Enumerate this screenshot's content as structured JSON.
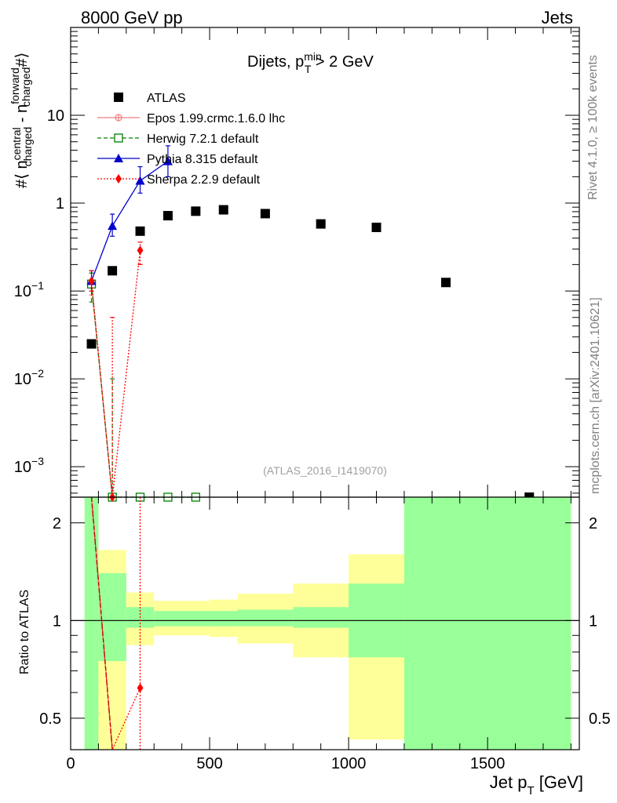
{
  "header": {
    "left": "8000 GeV pp",
    "right": "Jets",
    "side_top": "Rivet 4.1.0, ≥ 100k events",
    "side_bottom": "mcplots.cern.ch [arXiv:2401.10621]"
  },
  "chart_data": [
    {
      "type": "scatter",
      "panel": "main",
      "title": {
        "main": "Dijets, p",
        "sub": "T",
        "sup": "min",
        "rest": " > 2 GeV"
      },
      "ylabel": {
        "prefix": "#⟨ n",
        "sup1": "central",
        "sub1": "charged",
        "mid": " - n",
        "sup2": "forward",
        "sub2": "charged",
        "suffix": "#⟩"
      },
      "watermark": "(ATLAS_2016_I1419070)",
      "yscale": "log",
      "ylim": [
        0.00045,
        100
      ],
      "xlim": [
        0,
        1830
      ],
      "yticks": [
        {
          "v": 0.001,
          "m": "10",
          "e": "−3"
        },
        {
          "v": 0.01,
          "m": "10",
          "e": "−2"
        },
        {
          "v": 0.1,
          "m": "10",
          "e": "−1"
        },
        {
          "v": 1,
          "m": "1",
          "e": ""
        },
        {
          "v": 10,
          "m": "10",
          "e": ""
        }
      ],
      "series": [
        {
          "name": "ATLAS",
          "color": "#000000",
          "marker": "square",
          "points": [
            {
              "x": 75,
              "y": 0.025
            },
            {
              "x": 150,
              "y": 0.17
            },
            {
              "x": 250,
              "y": 0.48
            },
            {
              "x": 350,
              "y": 0.72
            },
            {
              "x": 450,
              "y": 0.81
            },
            {
              "x": 550,
              "y": 0.84
            },
            {
              "x": 700,
              "y": 0.76
            },
            {
              "x": 900,
              "y": 0.58
            },
            {
              "x": 1100,
              "y": 0.53
            },
            {
              "x": 1350,
              "y": 0.125
            },
            {
              "x": 1650,
              "y": 0.00045
            }
          ]
        },
        {
          "name": "Epos 1.99.crmc.1.6.0 lhc",
          "color": "#f08080",
          "marker": "open-cross",
          "dash": "",
          "points": [
            {
              "x": 75,
              "y": 0.12,
              "elo": 0.09,
              "ehi": 0.16
            },
            {
              "x": 150,
              "y": 0.00045
            }
          ]
        },
        {
          "name": "Herwig 7.2.1 default",
          "color": "#008000",
          "marker": "open-square",
          "dash": "5,3",
          "points": [
            {
              "x": 75,
              "y": 0.12,
              "elo": 0.075,
              "ehi": 0.16
            },
            {
              "x": 150,
              "y": 0.00045,
              "ehi": 0.01
            },
            {
              "x": 250,
              "y": 0.00045
            },
            {
              "x": 350,
              "y": 0.00045
            },
            {
              "x": 450,
              "y": 0.00045
            }
          ]
        },
        {
          "name": "Pythia 8.315 default",
          "color": "#0000cc",
          "marker": "triangle",
          "dash": "",
          "points": [
            {
              "x": 75,
              "y": 0.13,
              "elo": 0.1,
              "ehi": 0.17
            },
            {
              "x": 150,
              "y": 0.55,
              "elo": 0.42,
              "ehi": 0.75
            },
            {
              "x": 250,
              "y": 1.8,
              "elo": 1.3,
              "ehi": 2.6
            },
            {
              "x": 350,
              "y": 3.0,
              "elo": 2.0,
              "ehi": 4.5
            }
          ]
        },
        {
          "name": "Sherpa 2.2.9 default",
          "color": "#ff0000",
          "marker": "diamond",
          "dash": "2,2",
          "points": [
            {
              "x": 75,
              "y": 0.13,
              "elo": 0.1,
              "ehi": 0.17
            },
            {
              "x": 150,
              "y": 0.00045,
              "ehi": 0.05
            },
            {
              "x": 250,
              "y": 0.29,
              "elo": 0.2,
              "ehi": 0.36
            }
          ]
        }
      ]
    },
    {
      "type": "area",
      "panel": "ratio",
      "ylabel": "Ratio to ATLAS",
      "xlabel": {
        "main": "Jet p",
        "sub": "T",
        "rest": " [GeV]"
      },
      "yscale": "log",
      "ylim": [
        0.4,
        2.4
      ],
      "xlim": [
        0,
        1830
      ],
      "xticks": [
        0,
        500,
        1000,
        1500
      ],
      "yticks": [
        0.5,
        1,
        2
      ],
      "bands": [
        {
          "x0": 50,
          "x1": 100,
          "g": [
            0.05,
            50
          ],
          "y": [
            0.05,
            50
          ]
        },
        {
          "x0": 100,
          "x1": 200,
          "g": [
            0.75,
            1.4
          ],
          "y": [
            0.3,
            1.65
          ]
        },
        {
          "x0": 200,
          "x1": 300,
          "g": [
            0.95,
            1.1
          ],
          "y": [
            0.84,
            1.22
          ]
        },
        {
          "x0": 300,
          "x1": 500,
          "g": [
            0.96,
            1.07
          ],
          "y": [
            0.9,
            1.15
          ]
        },
        {
          "x0": 500,
          "x1": 600,
          "g": [
            0.96,
            1.07
          ],
          "y": [
            0.89,
            1.16
          ]
        },
        {
          "x0": 600,
          "x1": 800,
          "g": [
            0.96,
            1.08
          ],
          "y": [
            0.85,
            1.21
          ]
        },
        {
          "x0": 800,
          "x1": 1000,
          "g": [
            0.95,
            1.1
          ],
          "y": [
            0.77,
            1.3
          ]
        },
        {
          "x0": 1000,
          "x1": 1200,
          "g": [
            0.77,
            1.3
          ],
          "y": [
            0.43,
            1.6
          ]
        },
        {
          "x0": 1200,
          "x1": 1800,
          "g": [
            0.05,
            50
          ],
          "y": [
            0.05,
            50
          ]
        }
      ],
      "ratio_lines": [
        {
          "name": "Epos",
          "color": "#f08080",
          "dash": "",
          "points": [
            {
              "x": 75,
              "y": 4.8
            },
            {
              "x": 150,
              "y": 0.003
            }
          ]
        },
        {
          "name": "Herwig",
          "color": "#8b0000",
          "dash": "6,3",
          "points": [
            {
              "x": 75,
              "y": 4.8
            },
            {
              "x": 150,
              "y": 0.003
            }
          ]
        },
        {
          "name": "Sherpa",
          "color": "#ff0000",
          "dash": "2,2",
          "points": [
            {
              "x": 75,
              "y": 5.2
            },
            {
              "x": 150,
              "y": 0.003
            },
            {
              "x": 250,
              "y": 0.62
            }
          ]
        },
        {
          "name": "Sherpa-err",
          "color": "#ff0000",
          "dash": "2,2",
          "points": [
            {
              "x": 250,
              "y": 0.003
            },
            {
              "x": 250,
              "y": 50
            }
          ]
        }
      ],
      "ratio_markers": [
        {
          "color": "#ff0000",
          "marker": "diamond",
          "x": 250,
          "y": 0.62
        }
      ]
    }
  ]
}
